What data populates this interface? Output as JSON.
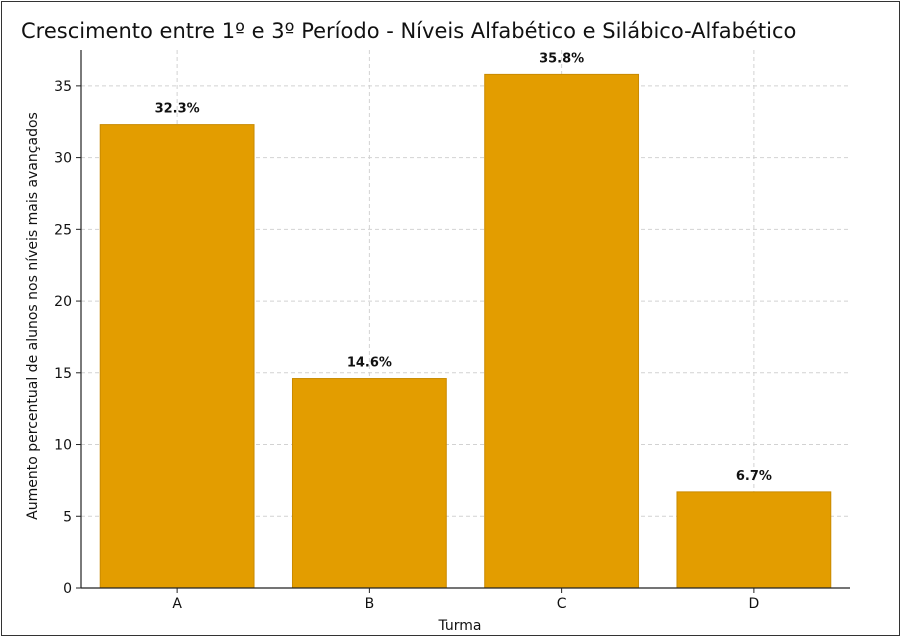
{
  "chart_data": {
    "type": "bar",
    "title": "Crescimento entre 1º e 3º Período - Níveis Alfabético e Silábico-Alfabético",
    "xlabel": "Turma",
    "ylabel": "Aumento percentual de alunos nos níveis mais avançados",
    "categories": [
      "A",
      "B",
      "C",
      "D"
    ],
    "values": [
      32.3,
      14.6,
      35.8,
      6.7
    ],
    "data_labels": [
      "32.3%",
      "14.6%",
      "35.8%",
      "6.7%"
    ],
    "ylim": [
      0,
      37.5
    ],
    "yticks": [
      0,
      5,
      10,
      15,
      20,
      25,
      30,
      35
    ],
    "grid": true,
    "bar_color": "#E39D00",
    "bar_edge_color": "#C98A00"
  }
}
